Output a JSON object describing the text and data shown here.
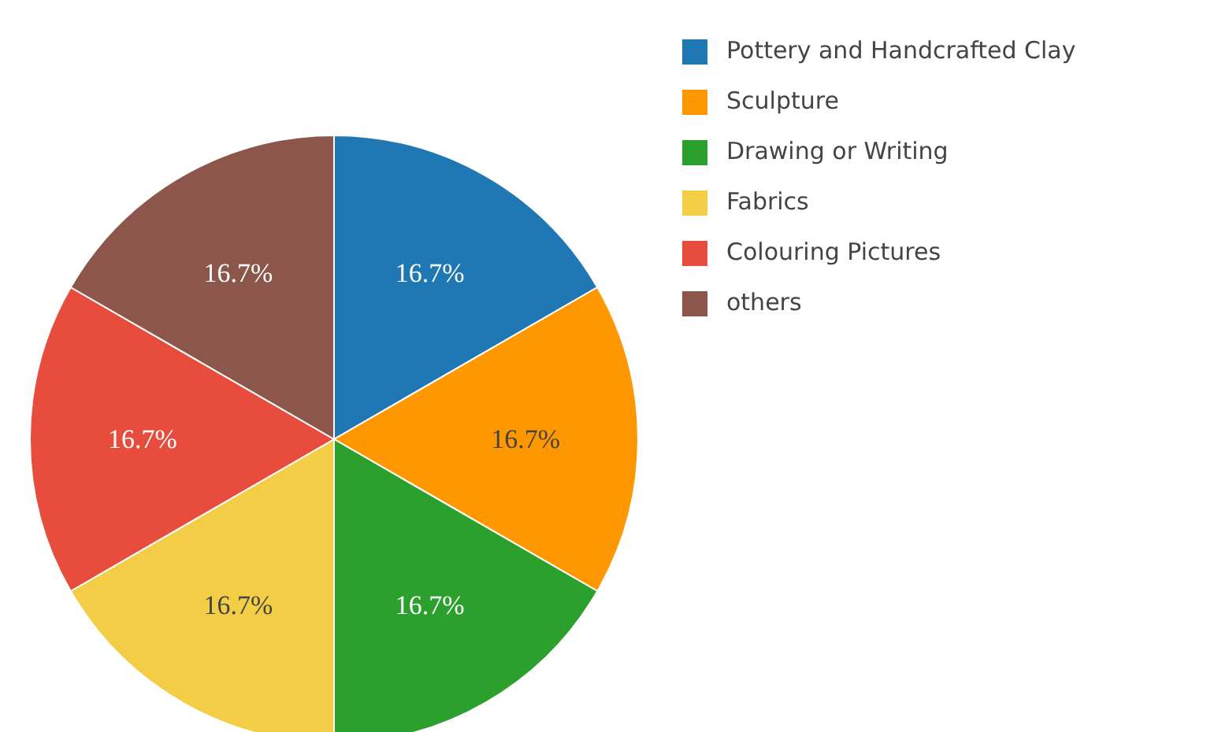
{
  "chart_data": {
    "type": "pie",
    "categories": [
      "Pottery and Handcrafted Clay",
      "Sculpture",
      "Drawing or Writing",
      "Fabrics",
      "Colouring Pictures",
      "others"
    ],
    "values": [
      16.7,
      16.7,
      16.7,
      16.7,
      16.7,
      16.7
    ],
    "colors": [
      "#1f77b4",
      "#ff9800",
      "#2ca02c",
      "#f4cd47",
      "#e74c3c",
      "#8c564b"
    ],
    "value_labels": [
      "16.7%",
      "16.7%",
      "16.7%",
      "16.7%",
      "16.7%",
      "16.7%"
    ],
    "legend": "top right"
  }
}
